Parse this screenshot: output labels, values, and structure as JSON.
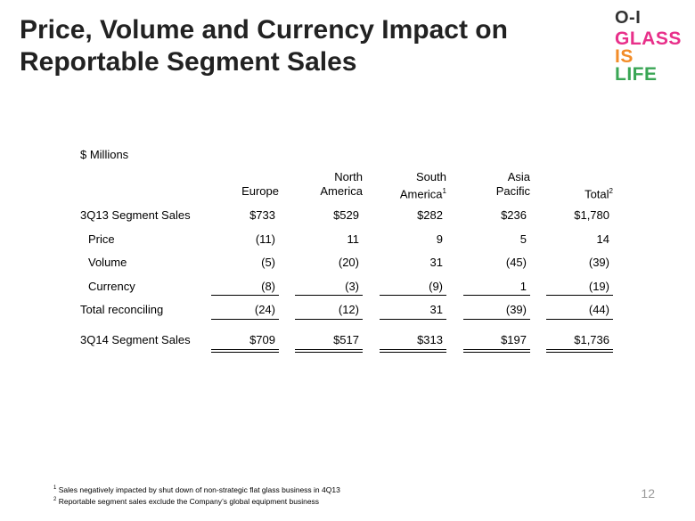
{
  "header": {
    "title_lines": [
      "Price, Volume and Currency Impact on",
      "Reportable Segment Sales"
    ]
  },
  "logo": {
    "brand": "O-I",
    "lines": [
      "GLASS",
      "IS",
      "LIFE"
    ]
  },
  "table": {
    "unit": "$ Millions",
    "columns": [
      {
        "lines": [
          "Europe"
        ]
      },
      {
        "lines": [
          "North",
          "America"
        ]
      },
      {
        "lines": [
          "South",
          "America"
        ],
        "sup": "1"
      },
      {
        "lines": [
          "Asia",
          "Pacific"
        ]
      },
      {
        "lines": [
          "Total"
        ],
        "sup": "2"
      }
    ],
    "rows": [
      {
        "label": "3Q13 Segment Sales",
        "cells": [
          "$733",
          "$529",
          "$282",
          "$236",
          "$1,780"
        ]
      },
      {
        "label": "Price",
        "cells": [
          "(11)",
          "11",
          "9",
          "5",
          "14"
        ]
      },
      {
        "label": "Volume",
        "cells": [
          "(5)",
          "(20)",
          "31",
          "(45)",
          "(39)"
        ]
      },
      {
        "label": "Currency",
        "cells": [
          "(8)",
          "(3)",
          "(9)",
          "1",
          "(19)"
        ]
      },
      {
        "label": "Total reconciling",
        "cells": [
          "(24)",
          "(12)",
          "31",
          "(39)",
          "(44)"
        ]
      },
      {
        "label": "3Q14 Segment Sales",
        "cells": [
          "$709",
          "$517",
          "$313",
          "$197",
          "$1,736"
        ]
      }
    ]
  },
  "footnotes": [
    {
      "mark": "1",
      "text": "Sales negatively impacted by shut down of non-strategic flat glass business in 4Q13"
    },
    {
      "mark": "2",
      "text": "Reportable segment sales exclude the Company’s global equipment business"
    }
  ],
  "page_number": "12"
}
